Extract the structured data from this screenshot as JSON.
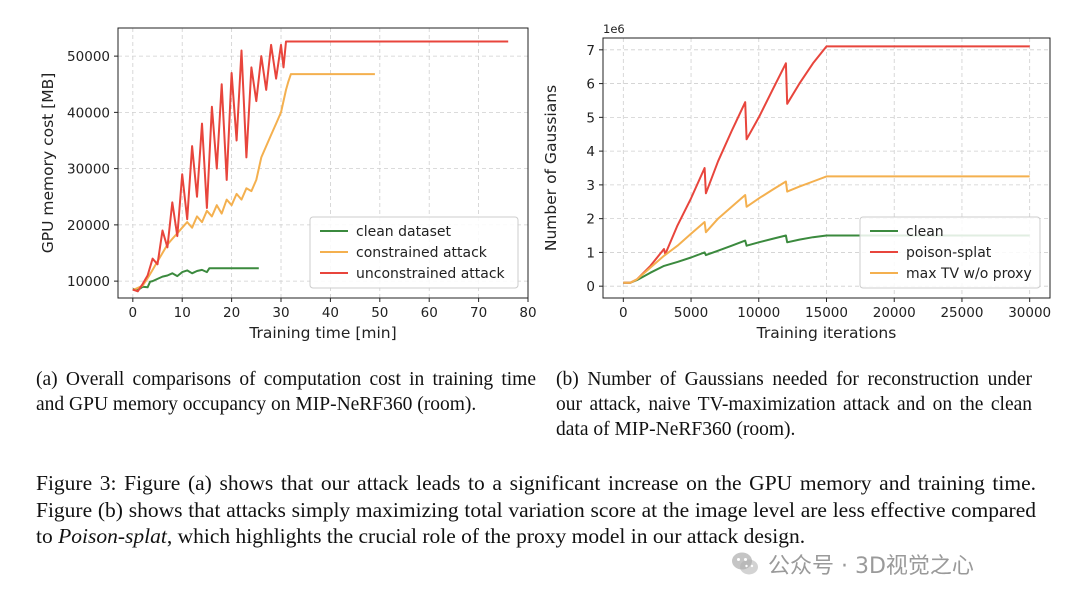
{
  "chart_data": [
    {
      "type": "line",
      "id": "a",
      "xlabel": "Training time [min]",
      "ylabel": "GPU memory cost [MB]",
      "xlim": [
        -3,
        80
      ],
      "ylim": [
        7000,
        55000
      ],
      "xticks": [
        0,
        10,
        20,
        30,
        40,
        50,
        60,
        70,
        80
      ],
      "yticks": [
        10000,
        20000,
        30000,
        40000,
        50000
      ],
      "grid": true,
      "legend_position": "lower-right",
      "series": [
        {
          "name": "clean dataset",
          "color": "#3b8a3e",
          "x": [
            0,
            1,
            2,
            3,
            3.5,
            4,
            5,
            6,
            7,
            8,
            9,
            10,
            11,
            12,
            13,
            14,
            15,
            15.5,
            16,
            25.5
          ],
          "y": [
            8600,
            8400,
            9000,
            8900,
            9900,
            10000,
            10400,
            10800,
            11000,
            11400,
            10900,
            11600,
            11900,
            11400,
            11800,
            12000,
            11600,
            12300,
            12300,
            12300
          ]
        },
        {
          "name": "constrained attack",
          "color": "#f4b04f",
          "x": [
            0,
            1,
            2,
            3,
            4,
            5,
            6,
            7,
            8,
            9,
            10,
            11,
            12,
            13,
            14,
            15,
            16,
            17,
            18,
            19,
            20,
            21,
            22,
            23,
            24,
            25,
            26,
            27,
            28,
            29,
            30,
            31,
            31.5,
            32,
            49
          ],
          "y": [
            8400,
            8800,
            9200,
            10500,
            12000,
            13500,
            15000,
            16500,
            17500,
            18500,
            19500,
            20500,
            19500,
            21500,
            20500,
            22500,
            21500,
            23500,
            22000,
            24500,
            23500,
            25500,
            24500,
            26500,
            26000,
            28000,
            32000,
            34000,
            36000,
            38000,
            40000,
            44000,
            45500,
            46800,
            46800
          ]
        },
        {
          "name": "unconstrained attack",
          "color": "#e8453c",
          "x": [
            0,
            1,
            2,
            3,
            4,
            5,
            6,
            7,
            8,
            9,
            10,
            11,
            12,
            13,
            14,
            15,
            16,
            17,
            18,
            19,
            20,
            21,
            22,
            23,
            24,
            25,
            26,
            27,
            28,
            29,
            30,
            30.5,
            31,
            76
          ],
          "y": [
            8500,
            8200,
            9500,
            11000,
            14000,
            13000,
            19000,
            16000,
            24000,
            18000,
            29000,
            21000,
            34000,
            25000,
            38000,
            23000,
            41000,
            30000,
            45000,
            28000,
            47000,
            35000,
            51000,
            32000,
            48000,
            42000,
            50000,
            44000,
            52000,
            46000,
            52000,
            48000,
            52600,
            52600
          ]
        }
      ]
    },
    {
      "type": "line",
      "id": "b",
      "xlabel": "Training iterations",
      "ylabel": "Number of Gaussians",
      "y_offset_text": "1e6",
      "xlim": [
        -1500,
        31500
      ],
      "ylim": [
        -0.35,
        7.35
      ],
      "xticks": [
        0,
        5000,
        10000,
        15000,
        20000,
        25000,
        30000
      ],
      "yticks": [
        0,
        1,
        2,
        3,
        4,
        5,
        6,
        7
      ],
      "grid": true,
      "legend_position": "top-right",
      "series": [
        {
          "name": "clean",
          "color": "#3b8a3e",
          "x": [
            0,
            500,
            1000,
            2000,
            3000,
            4000,
            5000,
            6000,
            6100,
            7000,
            8000,
            9000,
            9100,
            10000,
            11000,
            12000,
            12100,
            13000,
            14000,
            15000,
            30000
          ],
          "y": [
            0.1,
            0.1,
            0.18,
            0.4,
            0.6,
            0.72,
            0.85,
            1.0,
            0.92,
            1.05,
            1.2,
            1.35,
            1.2,
            1.3,
            1.4,
            1.5,
            1.3,
            1.38,
            1.45,
            1.5,
            1.5
          ]
        },
        {
          "name": "poison-splat",
          "color": "#e8453c",
          "x": [
            0,
            500,
            1000,
            2000,
            3000,
            3100,
            4000,
            5000,
            6000,
            6100,
            7000,
            8000,
            9000,
            9100,
            10000,
            11000,
            12000,
            12100,
            13000,
            14000,
            15000,
            30000
          ],
          "y": [
            0.1,
            0.1,
            0.2,
            0.6,
            1.1,
            0.95,
            1.8,
            2.6,
            3.5,
            2.75,
            3.7,
            4.6,
            5.45,
            4.35,
            5.0,
            5.8,
            6.6,
            5.4,
            6.0,
            6.6,
            7.1,
            7.1
          ]
        },
        {
          "name": "max TV w/o proxy",
          "color": "#f4b04f",
          "x": [
            0,
            500,
            1000,
            2000,
            3000,
            4000,
            5000,
            6000,
            6100,
            7000,
            8000,
            9000,
            9100,
            10000,
            11000,
            12000,
            12100,
            13000,
            14000,
            15000,
            30000
          ],
          "y": [
            0.1,
            0.1,
            0.2,
            0.55,
            0.9,
            1.2,
            1.55,
            1.9,
            1.6,
            2.0,
            2.35,
            2.7,
            2.35,
            2.6,
            2.85,
            3.1,
            2.8,
            2.95,
            3.1,
            3.25,
            3.25
          ]
        }
      ]
    }
  ],
  "captions": {
    "a": "(a) Overall comparisons of computation cost in training time and GPU memory occupancy on MIP-NeRF360 (room).",
    "b": "(b) Number of Gaussians needed for reconstruction under our attack, naive TV-maximization attack and on the clean data of MIP-NeRF360 (room).",
    "figure_pre": "Figure 3: Figure (a) shows that our attack leads to a significant increase on the GPU memory and training time. Figure (b) shows that attacks simply maximizing total variation score at the image level are less effective compared to ",
    "figure_em": "Poison-splat",
    "figure_post": ", which highlights the crucial role of the proxy model in our attack design."
  },
  "watermark": {
    "icon": "wechat-icon",
    "text": "公众号 · 3D视觉之心"
  }
}
